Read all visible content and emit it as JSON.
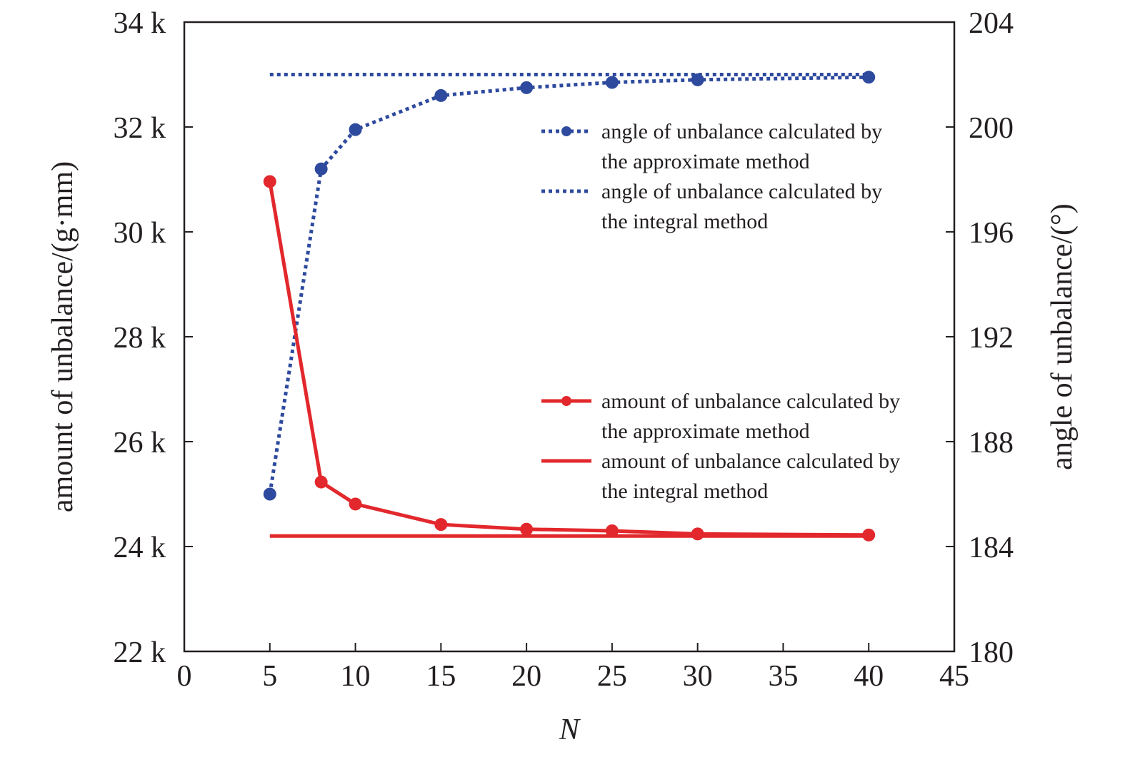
{
  "chart_data": {
    "type": "line",
    "xlabel": "N",
    "ylabel_left": "amount of unbalance/(g·mm)",
    "ylabel_right": "angle of unbalance/(°)",
    "xlim": [
      0,
      45
    ],
    "ylim_left": [
      22000,
      34000
    ],
    "ylim_right": [
      180,
      204
    ],
    "x_ticks": [
      0,
      5,
      10,
      15,
      20,
      25,
      30,
      35,
      40,
      45
    ],
    "x_tick_labels": [
      "0",
      "5",
      "10",
      "15",
      "20",
      "25",
      "30",
      "35",
      "40",
      "45"
    ],
    "y_left_ticks": [
      22000,
      24000,
      26000,
      28000,
      30000,
      32000,
      34000
    ],
    "y_left_tick_labels": [
      "22 k",
      "24 k",
      "26 k",
      "28 k",
      "30 k",
      "32 k",
      "34 k"
    ],
    "y_right_ticks": [
      180,
      184,
      188,
      192,
      196,
      200,
      204
    ],
    "y_right_tick_labels": [
      "180",
      "184",
      "188",
      "192",
      "196",
      "200",
      "204"
    ],
    "grid": false,
    "series": [
      {
        "name": "angle of unbalance calculated by the approximate method",
        "legend_lines": [
          "angle of unbalance calculated by",
          "the approximate method"
        ],
        "axis": "right",
        "style": "dotted-markers",
        "color": "#2e4a9e",
        "x": [
          5,
          8,
          10,
          15,
          20,
          25,
          30,
          40
        ],
        "y": [
          186.0,
          198.4,
          199.9,
          201.2,
          201.5,
          201.7,
          201.8,
          201.9
        ]
      },
      {
        "name": "angle of unbalance calculated by the integral method",
        "legend_lines": [
          "angle of unbalance calculated by",
          "the integral method"
        ],
        "axis": "right",
        "style": "dotted",
        "color": "#2e4a9e",
        "x": [
          5,
          40
        ],
        "y": [
          202.0,
          202.0
        ]
      },
      {
        "name": "amount of unbalance calculated by the approximate method",
        "legend_lines": [
          "amount of unbalance calculated by",
          "the approximate method"
        ],
        "axis": "left",
        "style": "solid-markers",
        "color": "#e2282c",
        "x": [
          5,
          8,
          10,
          15,
          20,
          25,
          30,
          40
        ],
        "y": [
          30960,
          25230,
          24810,
          24420,
          24330,
          24300,
          24240,
          24220
        ]
      },
      {
        "name": "amount of unbalance calculated by the integral method",
        "legend_lines": [
          "amount of unbalance calculated by",
          "the integral method"
        ],
        "axis": "left",
        "style": "solid",
        "color": "#e2282c",
        "x": [
          5,
          40
        ],
        "y": [
          24200,
          24200
        ]
      }
    ],
    "legends": [
      {
        "placement": "top-right",
        "series_indices": [
          0,
          1
        ]
      },
      {
        "placement": "center-right",
        "series_indices": [
          2,
          3
        ]
      }
    ]
  }
}
